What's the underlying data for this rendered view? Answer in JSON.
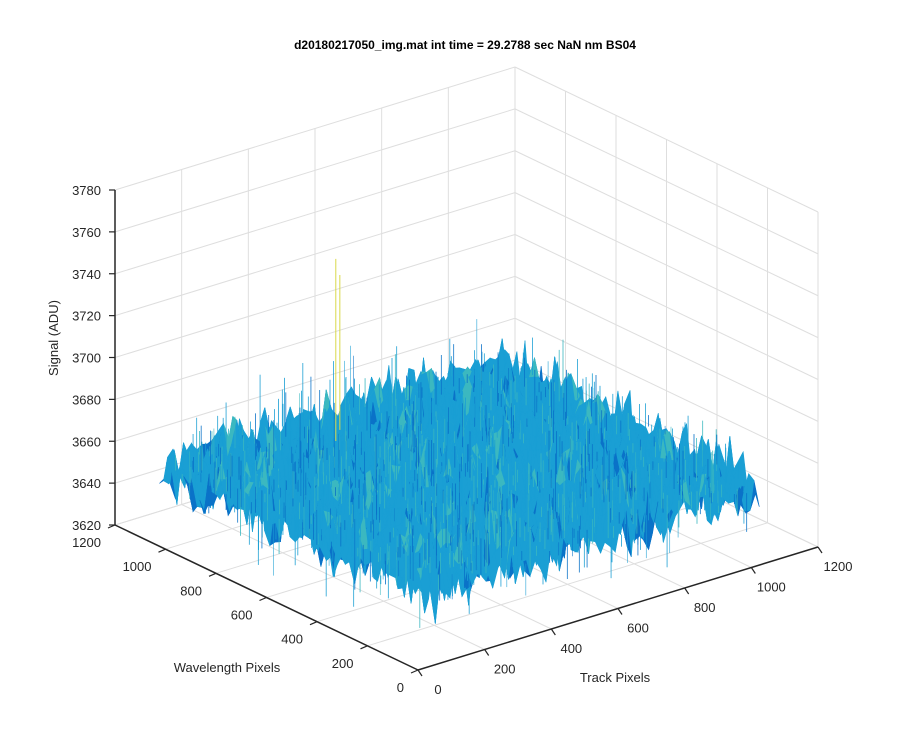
{
  "chart_data": {
    "type": "surface",
    "title": "d20180217050_img.mat int time = 29.2788 sec  NaN nm BS04",
    "xlabel": "Track Pixels",
    "ylabel": "Wavelength Pixels",
    "zlabel": "Signal (ADU)",
    "xlim": [
      0,
      1200
    ],
    "ylim": [
      0,
      1200
    ],
    "zlim": [
      3620,
      3780
    ],
    "x_ticks": [
      "0",
      "200",
      "400",
      "600",
      "800",
      "1000",
      "1200"
    ],
    "y_ticks": [
      "0",
      "200",
      "400",
      "600",
      "800",
      "1000",
      "1200"
    ],
    "z_ticks": [
      "3620",
      "3640",
      "3660",
      "3680",
      "3700",
      "3720",
      "3740",
      "3760",
      "3780"
    ],
    "grid": true,
    "data_extent": {
      "x": [
        0,
        1024
      ],
      "y": [
        0,
        1024
      ]
    },
    "surface_mean": 3658,
    "surface_noise_range": [
      3635,
      3700
    ],
    "colormap": "parula",
    "colors": {
      "surface_low": "#0a72c8",
      "surface_mid": "#1a9fd4",
      "surface_high": "#3bb8c0",
      "spike": "#d8d84a"
    }
  }
}
